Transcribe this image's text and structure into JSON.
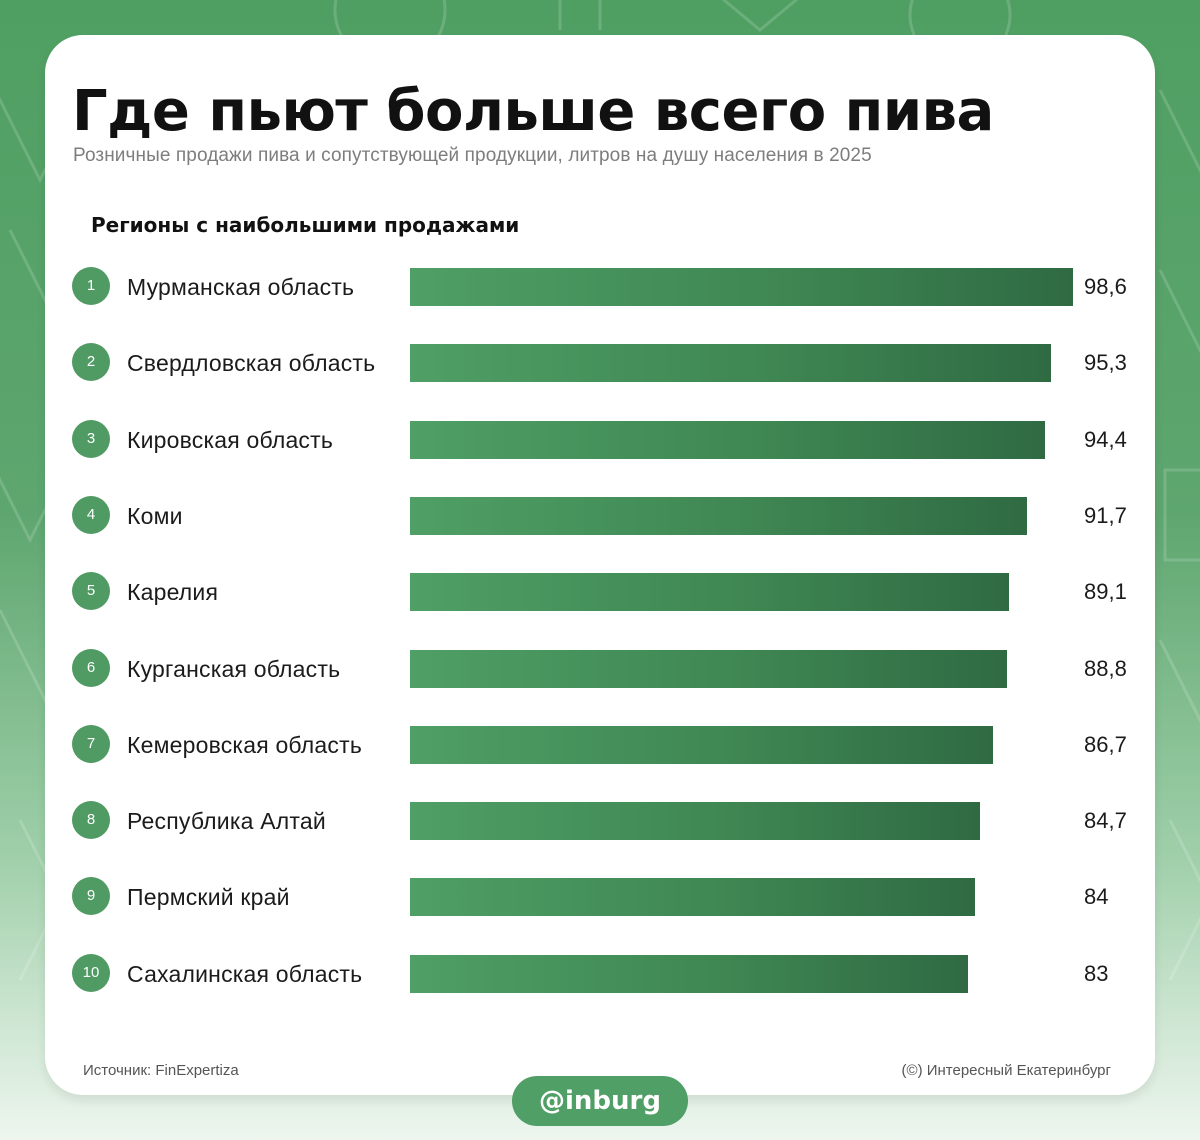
{
  "title": "Где пьют больше всего пива",
  "subtitle": "Розничные продажи пива и сопутствующей продукции, литров на душу населения в 2025",
  "section_label": "Регионы с наибольшими продажами",
  "footer": {
    "source": "Источник: FinExpertiza",
    "copyright": "(©) Интересный Екатеринбург"
  },
  "handle": "@inburg",
  "colors": {
    "bar_start": "#4f9f66",
    "bar_end": "#2f6a43",
    "background": "#4f9f62",
    "rank_badge": "#4f9b63"
  },
  "chart_data": {
    "type": "bar",
    "orientation": "horizontal",
    "title": "Где пьют больше всего пива",
    "subtitle": "Розничные продажи пива и сопутствующей продукции, литров на душу населения в 2025",
    "categories": [
      "Мурманская область",
      "Свердловская область",
      "Кировская область",
      "Коми",
      "Карелия",
      "Курганская область",
      "Кемеровская область",
      "Республика Алтай",
      "Пермский край",
      "Сахалинская область"
    ],
    "ranks": [
      "1",
      "2",
      "3",
      "4",
      "5",
      "6",
      "7",
      "8",
      "9",
      "10"
    ],
    "values": [
      98.6,
      95.3,
      94.4,
      91.7,
      89.1,
      88.8,
      86.7,
      84.7,
      84,
      83
    ],
    "value_labels": [
      "98,6",
      "95,3",
      "94,4",
      "91,7",
      "89,1",
      "88,8",
      "86,7",
      "84,7",
      "84",
      "83"
    ],
    "grid": false
  }
}
